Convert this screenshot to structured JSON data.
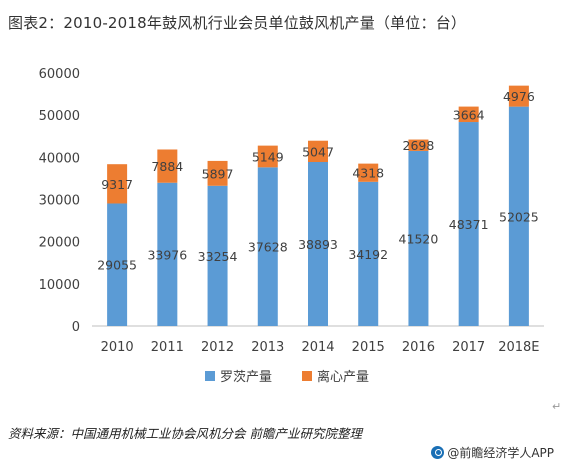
{
  "title": "图表2：2010-2018年鼓风机行业会员单位鼓风机产量（单位：台）",
  "source": "资料来源：中国通用机械工业协会风机分会 前瞻产业研究院整理",
  "credit": "@前瞻经济学人APP",
  "paragraph_mark": "↵",
  "colors": {
    "roots": "#5b9bd5",
    "centrifugal": "#ed7d31",
    "axis": "#bfbfbf",
    "grid": "#d9d9d9",
    "text": "#404040"
  },
  "chart_data": {
    "type": "bar",
    "stacked": true,
    "categories": [
      "2010",
      "2011",
      "2012",
      "2013",
      "2014",
      "2015",
      "2016",
      "2017",
      "2018E"
    ],
    "series": [
      {
        "name": "罗茨产量",
        "values": [
          29055,
          33976,
          33254,
          37628,
          38893,
          34192,
          41520,
          48371,
          52025
        ]
      },
      {
        "name": "离心产量",
        "values": [
          9317,
          7884,
          5897,
          5149,
          5047,
          4318,
          2698,
          3664,
          4976
        ]
      }
    ],
    "ylim": [
      0,
      60000
    ],
    "yticks": [
      "0",
      "10000",
      "20000",
      "30000",
      "40000",
      "50000",
      "60000"
    ],
    "xlabel": "",
    "ylabel": "",
    "grid": false,
    "legend_position": "bottom"
  }
}
